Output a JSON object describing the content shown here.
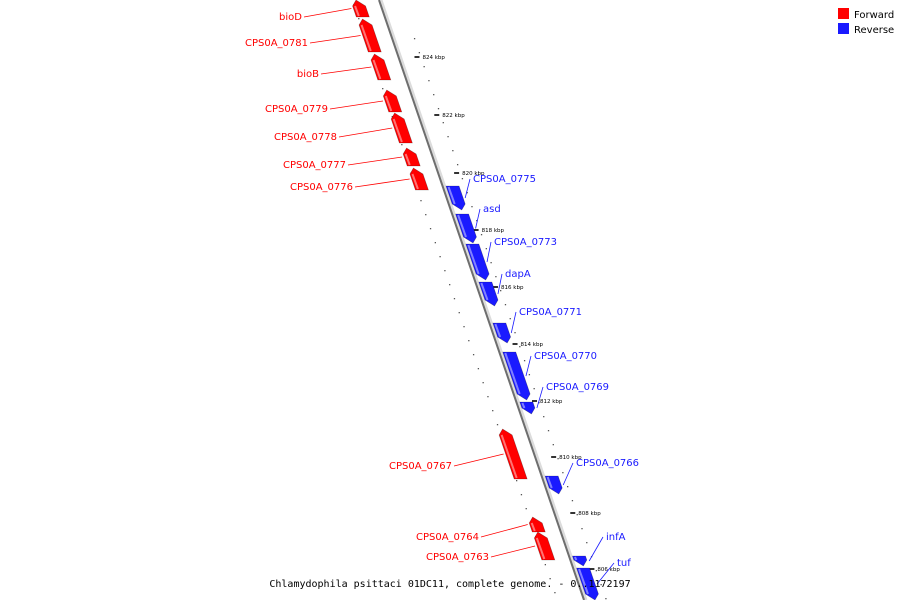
{
  "legend": {
    "forward_label": "Forward",
    "reverse_label": "Reverse",
    "forward_color": "#ff0000",
    "reverse_color": "#1a1aff"
  },
  "caption": "Chlamydophila psittaci 01DC11, complete genome. - 0..1172197",
  "ticks": [
    "824 kbp",
    "822 kbp",
    "820 kbp",
    "818 kbp",
    "816 kbp",
    "814 kbp",
    "812 kbp",
    "810 kbp",
    "808 kbp",
    "806 kbp"
  ],
  "genes": [
    {
      "name": "bioD",
      "strand": "forward"
    },
    {
      "name": "CPS0A_0781",
      "strand": "forward"
    },
    {
      "name": "bioB",
      "strand": "forward"
    },
    {
      "name": "CPS0A_0779",
      "strand": "forward"
    },
    {
      "name": "CPS0A_0778",
      "strand": "forward"
    },
    {
      "name": "CPS0A_0777",
      "strand": "forward"
    },
    {
      "name": "CPS0A_0776",
      "strand": "forward"
    },
    {
      "name": "CPS0A_0775",
      "strand": "reverse"
    },
    {
      "name": "asd",
      "strand": "reverse"
    },
    {
      "name": "CPS0A_0773",
      "strand": "reverse"
    },
    {
      "name": "dapA",
      "strand": "reverse"
    },
    {
      "name": "CPS0A_0771",
      "strand": "reverse"
    },
    {
      "name": "CPS0A_0770",
      "strand": "reverse"
    },
    {
      "name": "CPS0A_0769",
      "strand": "reverse"
    },
    {
      "name": "CPS0A_0767",
      "strand": "forward"
    },
    {
      "name": "CPS0A_0766",
      "strand": "reverse"
    },
    {
      "name": "CPS0A_0764",
      "strand": "forward"
    },
    {
      "name": "CPS0A_0763",
      "strand": "forward"
    },
    {
      "name": "infA",
      "strand": "reverse"
    },
    {
      "name": "tuf",
      "strand": "reverse"
    }
  ]
}
